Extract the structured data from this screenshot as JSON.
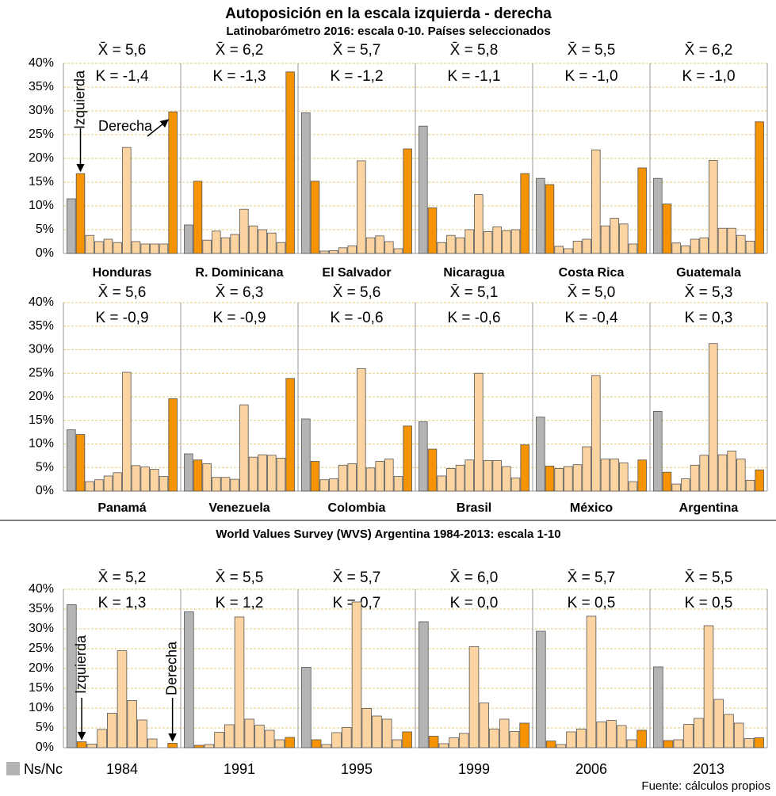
{
  "title": "Autoposición en la escala izquierda - derecha",
  "colors": {
    "nsnc": "#b4b4b4",
    "extreme": "#f59300",
    "middle": "#fcd4a2",
    "grid": "#e2cf7a",
    "border": "#9a9a9a"
  },
  "legend": {
    "label": "Ns/Nc"
  },
  "source": "Fuente: cálculos propios",
  "chart_data": [
    {
      "type": "bar",
      "subtitle": "Latinobarómetro 2016: escala 0-10. Países seleccionados",
      "ylim": [
        0,
        40
      ],
      "yticks": [
        {
          "value": 0,
          "label": "0%"
        },
        {
          "value": 5,
          "label": "5%"
        },
        {
          "value": 10,
          "label": "10%"
        },
        {
          "value": 15,
          "label": "15%"
        },
        {
          "value": 20,
          "label": "20%"
        },
        {
          "value": 25,
          "label": "25%"
        },
        {
          "value": 30,
          "label": "30%"
        },
        {
          "value": 35,
          "label": "35%"
        },
        {
          "value": 40,
          "label": "40%"
        }
      ],
      "grid": true,
      "annotations": [
        "Izquierda",
        "Derecha"
      ],
      "panels": [
        {
          "label": "Honduras",
          "mean": "X̄ = 5,6",
          "kurtosis": "K = -1,4",
          "values": [
            11.5,
            16.8,
            3.8,
            2.5,
            3,
            2.3,
            22.3,
            2.5,
            2,
            2,
            2,
            29.8
          ]
        },
        {
          "label": "R. Dominicana",
          "mean": "X̄ = 6,2",
          "kurtosis": "K = -1,3",
          "values": [
            6,
            15.2,
            2.8,
            4.7,
            3.3,
            4,
            9.3,
            5.8,
            5,
            4.3,
            2.3,
            38.2
          ]
        },
        {
          "label": "El Salvador",
          "mean": "X̄ = 5,7",
          "kurtosis": "K = -1,2",
          "values": [
            29.6,
            15.2,
            0.5,
            0.6,
            1.2,
            1.6,
            19.5,
            3.3,
            3.7,
            2.5,
            1,
            22
          ]
        },
        {
          "label": "Nicaragua",
          "mean": "X̄ = 5,8",
          "kurtosis": "K = -1,1",
          "values": [
            26.8,
            9.6,
            2.3,
            3.8,
            3.3,
            5,
            12.4,
            4.6,
            5.6,
            4.8,
            5,
            16.8
          ]
        },
        {
          "label": "Costa Rica",
          "mean": "X̄ = 5,5",
          "kurtosis": "K = -1,0",
          "values": [
            15.8,
            14.5,
            1.5,
            1,
            2.6,
            3,
            21.8,
            5.8,
            7.4,
            6.2,
            2,
            18
          ]
        },
        {
          "label": "Guatemala",
          "mean": "X̄ = 6,2",
          "kurtosis": "K = -1,0",
          "values": [
            15.8,
            10.4,
            2.2,
            1.6,
            3,
            3.3,
            19.6,
            5.3,
            5.3,
            3.8,
            2.6,
            27.7
          ]
        }
      ]
    },
    {
      "type": "bar",
      "ylim": [
        0,
        40
      ],
      "yticks": [
        {
          "value": 0,
          "label": "0%"
        },
        {
          "value": 5,
          "label": "5%"
        },
        {
          "value": 10,
          "label": "10%"
        },
        {
          "value": 15,
          "label": "15%"
        },
        {
          "value": 20,
          "label": "20%"
        },
        {
          "value": 25,
          "label": "25%"
        },
        {
          "value": 30,
          "label": "30%"
        },
        {
          "value": 35,
          "label": "35%"
        },
        {
          "value": 40,
          "label": "40%"
        }
      ],
      "grid": true,
      "panels": [
        {
          "label": "Panamá",
          "mean": "X̄ = 5,6",
          "kurtosis": "K = -0,9",
          "values": [
            13,
            12,
            2,
            2.4,
            3.2,
            3.9,
            25.2,
            5.4,
            5.1,
            4.6,
            3.1,
            19.6
          ]
        },
        {
          "label": "Venezuela",
          "mean": "X̄ = 6,3",
          "kurtosis": "K = -0,9",
          "values": [
            7.9,
            6.6,
            5.8,
            2.9,
            2.9,
            2.5,
            18.3,
            7.2,
            7.7,
            7.6,
            7,
            23.9
          ]
        },
        {
          "label": "Colombia",
          "mean": "X̄ = 5,6",
          "kurtosis": "K = -0,6",
          "values": [
            15.3,
            6.3,
            2.4,
            2.6,
            5.5,
            5.8,
            26,
            4.9,
            6.3,
            6.8,
            3.1,
            13.8
          ]
        },
        {
          "label": "Brasil",
          "mean": "X̄ = 5,1",
          "kurtosis": "K = -0,6",
          "values": [
            14.7,
            8.9,
            3.2,
            4.8,
            5.5,
            6.6,
            25,
            6.5,
            6.5,
            5.2,
            2.8,
            9.8
          ]
        },
        {
          "label": "México",
          "mean": "X̄ = 5,0",
          "kurtosis": "K = -0,4",
          "values": [
            15.7,
            5.3,
            4.8,
            5.2,
            5.6,
            9.4,
            24.5,
            6.8,
            6.8,
            6,
            2,
            6.6
          ]
        },
        {
          "label": "Argentina",
          "mean": "X̄ = 5,3",
          "kurtosis": "K = 0,3",
          "values": [
            16.9,
            4,
            1.5,
            2.6,
            5.5,
            7.6,
            31.3,
            7.7,
            8.5,
            6.8,
            2.3,
            4.5
          ]
        }
      ]
    },
    {
      "type": "bar",
      "subtitle": "World Values Survey (WVS) Argentina 1984-2013: escala 1-10",
      "ylim": [
        0,
        40
      ],
      "yticks": [
        {
          "value": 0,
          "label": "0%"
        },
        {
          "value": 5,
          "label": "5%"
        },
        {
          "value": 10,
          "label": "10%"
        },
        {
          "value": 15,
          "label": "15%"
        },
        {
          "value": 20,
          "label": "20%"
        },
        {
          "value": 25,
          "label": "25%"
        },
        {
          "value": 30,
          "label": "30%"
        },
        {
          "value": 35,
          "label": "35%"
        },
        {
          "value": 40,
          "label": "40%"
        }
      ],
      "grid": true,
      "annotations": [
        "Izquierda",
        "Derecha"
      ],
      "panels": [
        {
          "label": "1984",
          "mean": "X̄ = 5,2",
          "kurtosis": "K = 1,3",
          "values": [
            36.1,
            1.5,
            0.9,
            4.6,
            8.7,
            24.5,
            11.9,
            7,
            2.2,
            0,
            1.1
          ]
        },
        {
          "label": "1991",
          "mean": "X̄ = 5,5",
          "kurtosis": "K = 1,2",
          "values": [
            34.3,
            0.6,
            0.8,
            3.9,
            5.8,
            33,
            7.2,
            5.7,
            4.4,
            2,
            2.6
          ]
        },
        {
          "label": "1995",
          "mean": "X̄ = 5,7",
          "kurtosis": "K = 0,7",
          "values": [
            20.3,
            2,
            0.8,
            3.8,
            5.1,
            36.8,
            9.9,
            8,
            7.2,
            2,
            4
          ]
        },
        {
          "label": "1999",
          "mean": "X̄ = 6,0",
          "kurtosis": "K = 0,0",
          "values": [
            31.8,
            2.9,
            1,
            2.5,
            3.6,
            25.5,
            11.3,
            4.7,
            7.2,
            4.1,
            6.2
          ]
        },
        {
          "label": "2006",
          "mean": "X̄ = 5,7",
          "kurtosis": "K = 0,5",
          "values": [
            29.4,
            1.7,
            0.8,
            4,
            4.7,
            33.2,
            6.5,
            6.9,
            5.6,
            2,
            4.4
          ]
        },
        {
          "label": "2013",
          "mean": "X̄ = 5,5",
          "kurtosis": "K = 0,5",
          "values": [
            20.4,
            1.8,
            2,
            5.9,
            7.4,
            30.8,
            12.2,
            8.4,
            6.2,
            2.3,
            2.5
          ]
        }
      ]
    }
  ]
}
